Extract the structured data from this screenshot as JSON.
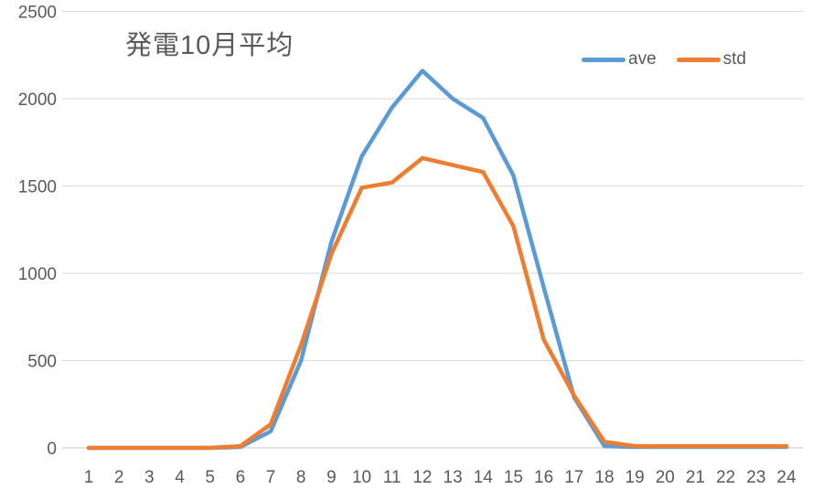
{
  "chart_data": {
    "type": "line",
    "title": "発電10月平均",
    "categories": [
      1,
      2,
      3,
      4,
      5,
      6,
      7,
      8,
      9,
      10,
      11,
      12,
      13,
      14,
      15,
      16,
      17,
      18,
      19,
      20,
      21,
      22,
      23,
      24
    ],
    "series": [
      {
        "name": "ave",
        "color": "#5B9BD5",
        "values": [
          0,
          0,
          0,
          0,
          0,
          5,
          95,
          500,
          1180,
          1670,
          1950,
          2160,
          2000,
          1890,
          1560,
          920,
          290,
          10,
          5,
          5,
          5,
          5,
          5,
          5
        ]
      },
      {
        "name": "std",
        "color": "#ED7D31",
        "values": [
          0,
          0,
          0,
          0,
          0,
          10,
          135,
          590,
          1110,
          1490,
          1520,
          1660,
          1620,
          1580,
          1270,
          620,
          300,
          35,
          10,
          10,
          10,
          10,
          10,
          10
        ]
      }
    ],
    "xlabel": "",
    "ylabel": "",
    "ylim": [
      0,
      2500
    ],
    "yticks": [
      0,
      500,
      1000,
      1500,
      2000,
      2500
    ],
    "grid": true,
    "legend_position": "top-right"
  },
  "colors": {
    "background": "#FFFFFF",
    "gridline": "#D9D9D9",
    "zero_line": "#C6C6C6",
    "axis_text": "#595959",
    "title_text": "#595959"
  }
}
